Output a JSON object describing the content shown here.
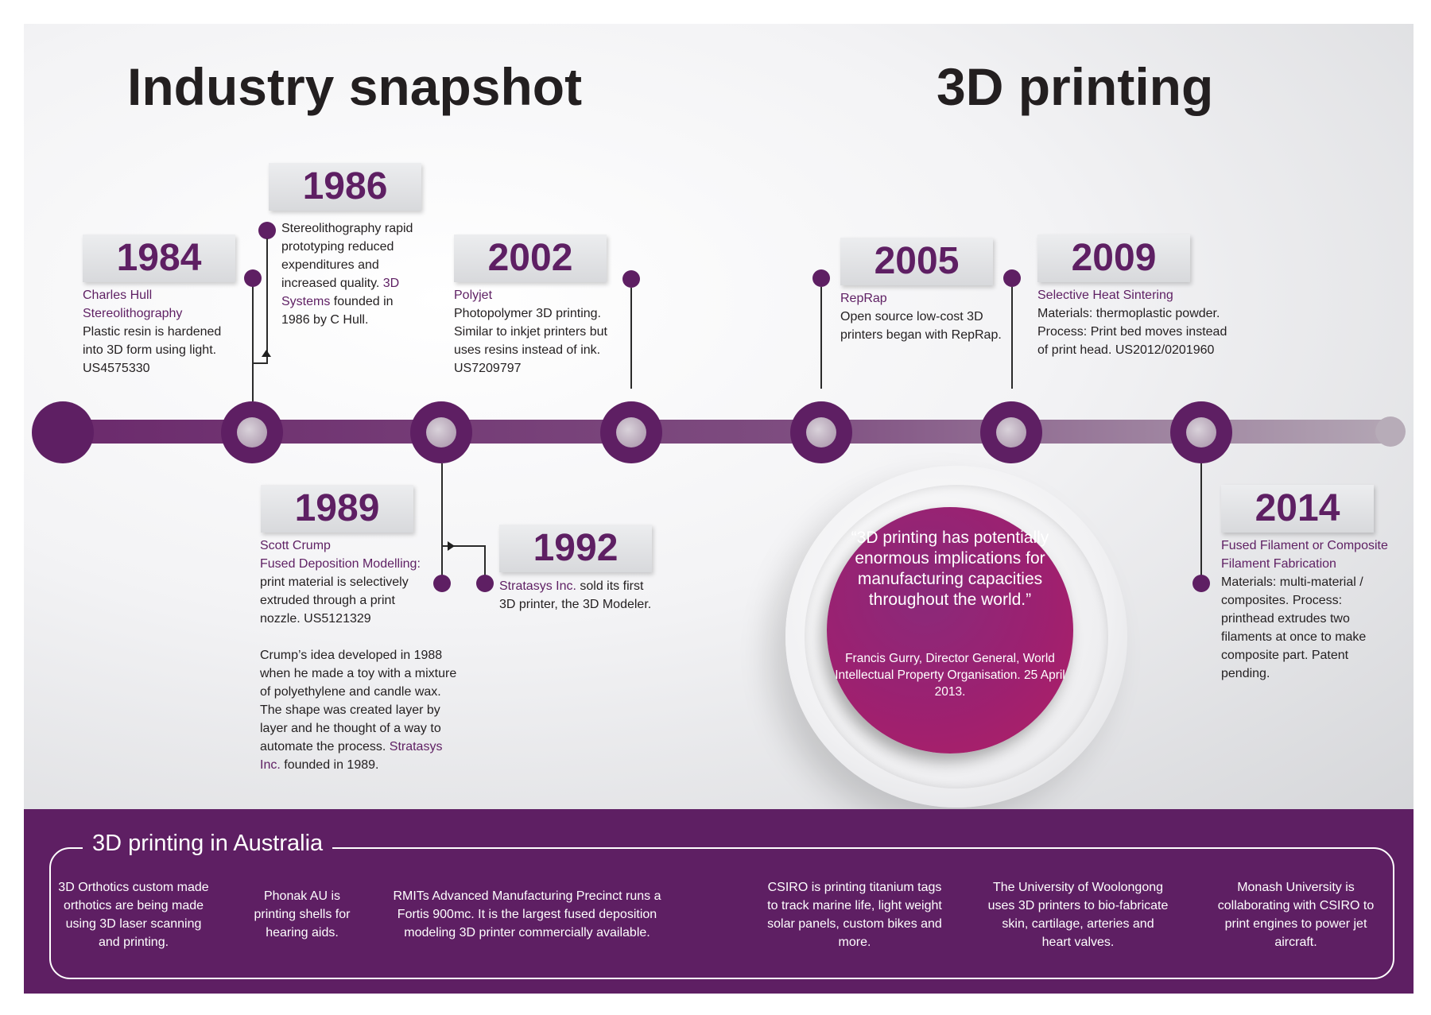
{
  "titles": {
    "left": "Industry snapshot",
    "right": "3D printing"
  },
  "timeline": {
    "y1984": {
      "year": "1984",
      "l1": "Charles Hull",
      "l2": "Stereolithography",
      "l3": "Plastic resin is hardened",
      "l4": "into 3D form using light.",
      "l5": "US4575330"
    },
    "y1986": {
      "year": "1986",
      "t1": "Stereolithography rapid prototyping reduced expenditures and increased quality.",
      "a1": "3D Systems",
      "t2": "founded in 1986 by C Hull."
    },
    "y1989": {
      "year": "1989",
      "l1": "Scott Crump",
      "l2": "Fused Deposition Modelling:",
      "t1": "print material is selectively extruded through a print nozzle. US5121329",
      "t2": "Crump’s idea developed in 1988 when he made a toy with a mixture of polyethylene and candle wax. The shape was created layer by layer and he thought of a way to automate the process.",
      "a2": "Stratasys Inc.",
      "t3": "founded in 1989."
    },
    "y1992": {
      "year": "1992",
      "a1": "Stratasys Inc.",
      "t1": "sold its first 3D printer, the 3D Modeler."
    },
    "y2002": {
      "year": "2002",
      "l1": "Polyjet",
      "t1": "Photopolymer 3D printing. Similar to inkjet printers but uses resins instead of ink. US7209797"
    },
    "y2005": {
      "year": "2005",
      "l1": "RepRap",
      "t1": "Open source low-cost 3D printers began with RepRap."
    },
    "y2009": {
      "year": "2009",
      "l1": "Selective Heat Sintering",
      "t1": "Materials: thermoplastic powder. Process: Print bed moves instead of print head. US2012/0201960"
    },
    "y2014": {
      "year": "2014",
      "l1": "Fused Filament or Composite Filament Fabrication",
      "t1": "Materials: multi-material / composites. Process: printhead extrudes two filaments at once to make composite part. Patent pending."
    }
  },
  "quote": {
    "text": "“3D printing has potentially enormous implications for manufacturing capacities throughout the world.”",
    "attribution": "Francis Gurry, Director General, World Intellectual Property Organisation. 25 April 2013."
  },
  "australia": {
    "title": "3D printing in Australia",
    "items": [
      "3D Orthotics custom made orthotics are being made using 3D laser scanning and printing.",
      "Phonak AU is printing shells for hearing aids.",
      "RMITs Advanced Manufacturing Precinct runs a Fortis 900mc. It is the largest fused deposition modeling 3D printer commercially available.",
      "CSIRO is printing titanium tags to track marine life, light weight solar panels, custom bikes and more.",
      "The University of Woolongong uses 3D printers to bio-fabricate skin, cartilage, arteries and heart valves.",
      "Monash University is collaborating with CSIRO to print engines to power jet aircraft."
    ]
  },
  "colors": {
    "brand": "#5e1f63",
    "quote": "#a0226e",
    "panel": "#e9e9ec"
  }
}
